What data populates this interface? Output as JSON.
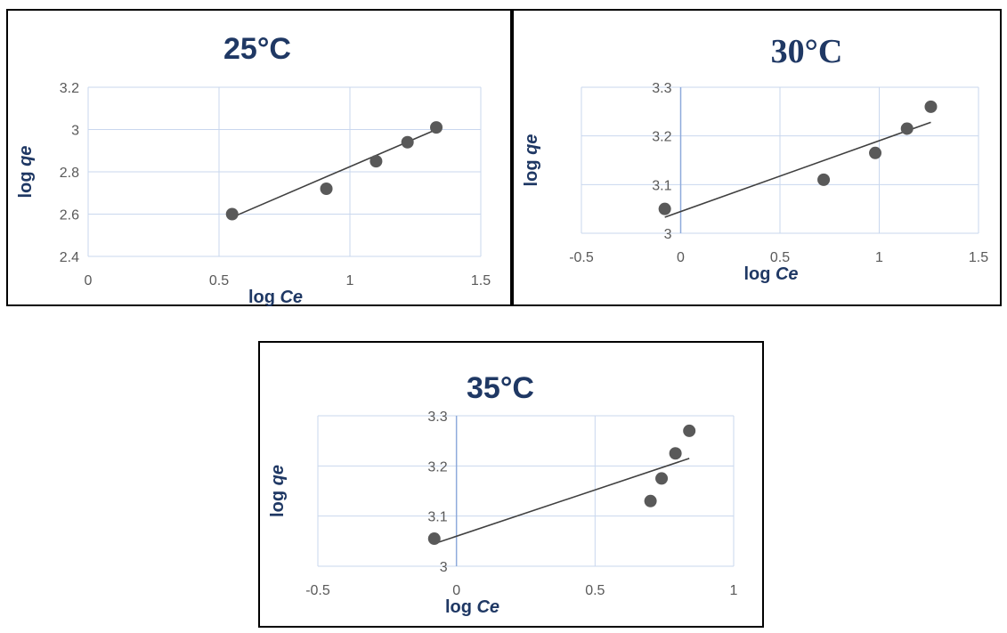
{
  "chart_data": [
    {
      "type": "scatter",
      "title": "25°C",
      "xlabel_main": "log ",
      "xlabel_var": "Ce",
      "ylabel_main": "log ",
      "ylabel_var": "qe",
      "xlim": [
        0,
        1.5
      ],
      "ylim": [
        2.4,
        3.2
      ],
      "xticks": [
        "0",
        "0.5",
        "1",
        "1.5"
      ],
      "yticks": [
        "2.4",
        "2.6",
        "2.8",
        "3",
        "3.2"
      ],
      "x": [
        0.55,
        0.91,
        1.1,
        1.22,
        1.33
      ],
      "y": [
        2.6,
        2.72,
        2.85,
        2.94,
        3.01
      ],
      "trendline": {
        "x": [
          0.55,
          1.33
        ],
        "y": [
          2.585,
          3.0
        ]
      },
      "grid": true
    },
    {
      "type": "scatter",
      "title": "30°C",
      "xlabel_main": "log ",
      "xlabel_var": "Ce",
      "ylabel_main": "log ",
      "ylabel_var": "qe",
      "xlim": [
        -0.5,
        1.5
      ],
      "ylim": [
        3,
        3.3
      ],
      "xticks": [
        "-0.5",
        "0",
        "0.5",
        "1",
        "1.5"
      ],
      "yticks": [
        "3",
        "3.1",
        "3.2",
        "3.3"
      ],
      "x": [
        -0.08,
        0.72,
        0.98,
        1.14,
        1.26
      ],
      "y": [
        3.05,
        3.11,
        3.165,
        3.215,
        3.26
      ],
      "trendline": {
        "x": [
          -0.08,
          1.26
        ],
        "y": [
          3.033,
          3.228
        ]
      },
      "grid": true
    },
    {
      "type": "scatter",
      "title": "35°C",
      "xlabel_main": "log ",
      "xlabel_var": "Ce",
      "ylabel_main": "log ",
      "ylabel_var": "qe",
      "xlim": [
        -0.5,
        1
      ],
      "ylim": [
        3,
        3.3
      ],
      "xticks": [
        "-0.5",
        "0",
        "0.5",
        "1"
      ],
      "yticks": [
        "3",
        "3.1",
        "3.2",
        "3.3"
      ],
      "x": [
        -0.08,
        0.7,
        0.74,
        0.79,
        0.84
      ],
      "y": [
        3.055,
        3.13,
        3.175,
        3.225,
        3.27
      ],
      "trendline": {
        "x": [
          -0.08,
          0.84
        ],
        "y": [
          3.045,
          3.215
        ]
      },
      "grid": true
    }
  ]
}
